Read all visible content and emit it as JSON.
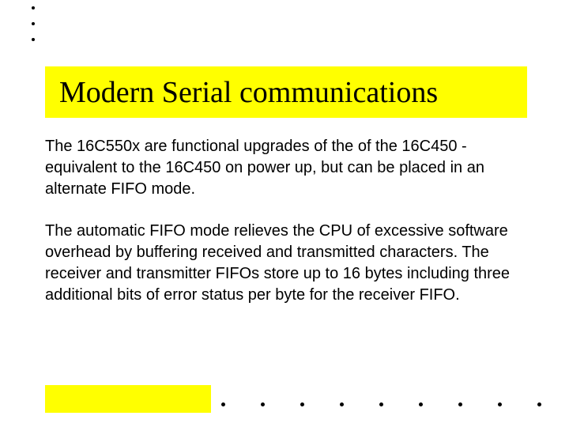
{
  "slide": {
    "title": "Modern Serial communications",
    "paragraphs": [
      "The 16C550x are functional upgrades of the of the 16C450 - equivalent to the 16C450 on power up, but can be placed in an alternate FIFO mode.",
      "The automatic FIFO mode relieves the CPU of excessive software overhead by buffering received and transmitted characters. The receiver and transmitter FIFOs store up to 16 bytes including three additional bits of error status per byte for the receiver FIFO."
    ]
  },
  "style": {
    "background_color": "#ffffff",
    "highlight_color": "#ffff00",
    "text_color": "#000000",
    "title_font": "Times New Roman",
    "title_fontsize": 38,
    "body_font": "Arial",
    "body_fontsize": 20,
    "dot_color": "#000000",
    "top_dot_count": 3,
    "bottom_dot_count": 9
  }
}
